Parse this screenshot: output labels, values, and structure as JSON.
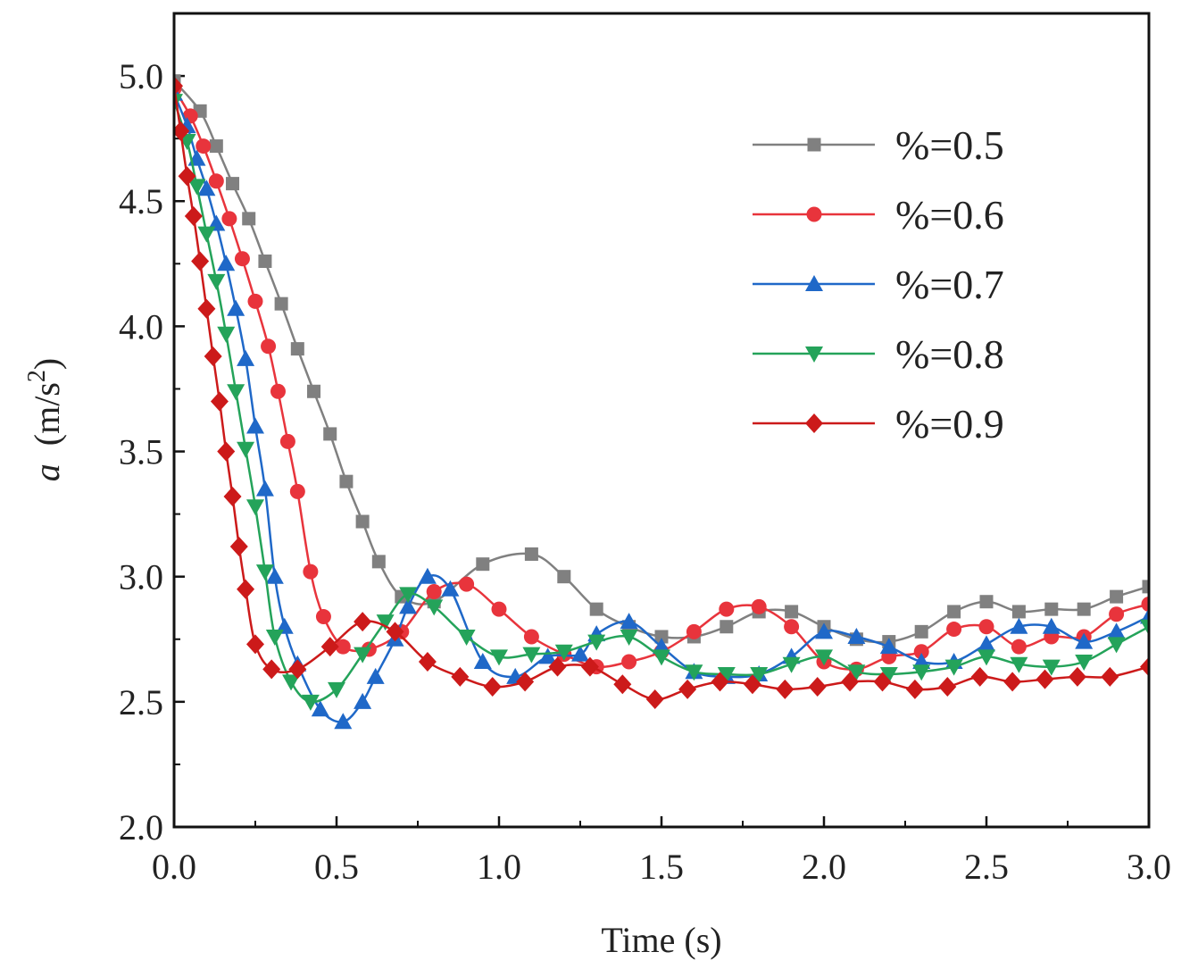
{
  "chart_data": {
    "type": "line",
    "title": "",
    "xlabel": "Time (s)",
    "ylabel_italic": "a",
    "ylabel_unit": "(m/s",
    "ylabel_sup": "2",
    "ylabel_close": ")",
    "xlim": [
      0,
      3
    ],
    "ylim": [
      2,
      5.25
    ],
    "xticks": [
      "0.0",
      "0.5",
      "1.0",
      "1.5",
      "2.0",
      "2.5",
      "3.0"
    ],
    "yticks": [
      "2.0",
      "2.5",
      "3.0",
      "3.5",
      "4.0",
      "4.5",
      "5.0"
    ],
    "grid": false,
    "legend_position": "top-right",
    "series": [
      {
        "name": "%=0.5",
        "color": "#808080",
        "marker": "square",
        "x": [
          0.0,
          0.08,
          0.13,
          0.18,
          0.23,
          0.28,
          0.33,
          0.38,
          0.43,
          0.48,
          0.53,
          0.58,
          0.63,
          0.7,
          0.8,
          0.95,
          1.1,
          1.2,
          1.3,
          1.4,
          1.5,
          1.6,
          1.7,
          1.8,
          1.9,
          2.0,
          2.1,
          2.2,
          2.3,
          2.4,
          2.5,
          2.6,
          2.7,
          2.8,
          2.9,
          3.0
        ],
        "y": [
          4.98,
          4.86,
          4.72,
          4.57,
          4.43,
          4.26,
          4.09,
          3.91,
          3.74,
          3.57,
          3.38,
          3.22,
          3.06,
          2.92,
          2.9,
          3.05,
          3.09,
          3.0,
          2.87,
          2.8,
          2.76,
          2.76,
          2.8,
          2.86,
          2.86,
          2.8,
          2.75,
          2.74,
          2.78,
          2.86,
          2.9,
          2.86,
          2.87,
          2.87,
          2.92,
          2.96
        ]
      },
      {
        "name": "%=0.6",
        "color": "#e8343c",
        "marker": "circle",
        "x": [
          0.0,
          0.05,
          0.09,
          0.13,
          0.17,
          0.21,
          0.25,
          0.29,
          0.32,
          0.35,
          0.38,
          0.42,
          0.46,
          0.52,
          0.6,
          0.7,
          0.8,
          0.9,
          1.0,
          1.1,
          1.2,
          1.3,
          1.4,
          1.5,
          1.6,
          1.7,
          1.8,
          1.9,
          2.0,
          2.1,
          2.2,
          2.3,
          2.4,
          2.5,
          2.6,
          2.7,
          2.8,
          2.9,
          3.0
        ],
        "y": [
          4.95,
          4.84,
          4.72,
          4.58,
          4.43,
          4.27,
          4.1,
          3.92,
          3.74,
          3.54,
          3.34,
          3.02,
          2.84,
          2.72,
          2.71,
          2.78,
          2.94,
          2.97,
          2.87,
          2.76,
          2.69,
          2.64,
          2.66,
          2.7,
          2.78,
          2.87,
          2.88,
          2.8,
          2.66,
          2.63,
          2.68,
          2.7,
          2.79,
          2.8,
          2.72,
          2.76,
          2.76,
          2.85,
          2.89
        ]
      },
      {
        "name": "%=0.7",
        "color": "#1f68c8",
        "marker": "triangle-up",
        "x": [
          0.0,
          0.04,
          0.07,
          0.1,
          0.13,
          0.16,
          0.19,
          0.22,
          0.25,
          0.28,
          0.31,
          0.34,
          0.38,
          0.45,
          0.52,
          0.58,
          0.62,
          0.68,
          0.72,
          0.78,
          0.85,
          0.95,
          1.05,
          1.15,
          1.25,
          1.3,
          1.4,
          1.5,
          1.6,
          1.7,
          1.8,
          1.9,
          2.0,
          2.1,
          2.2,
          2.3,
          2.4,
          2.5,
          2.6,
          2.7,
          2.8,
          2.9,
          3.0
        ],
        "y": [
          4.93,
          4.8,
          4.67,
          4.55,
          4.41,
          4.25,
          4.07,
          3.87,
          3.6,
          3.35,
          3.0,
          2.8,
          2.65,
          2.47,
          2.42,
          2.5,
          2.6,
          2.75,
          2.88,
          3.0,
          2.95,
          2.66,
          2.6,
          2.68,
          2.69,
          2.77,
          2.82,
          2.72,
          2.62,
          2.6,
          2.61,
          2.68,
          2.78,
          2.76,
          2.72,
          2.66,
          2.66,
          2.73,
          2.8,
          2.8,
          2.74,
          2.78,
          2.84
        ]
      },
      {
        "name": "%=0.8",
        "color": "#24a35a",
        "marker": "triangle-down",
        "x": [
          0.0,
          0.04,
          0.07,
          0.1,
          0.13,
          0.16,
          0.19,
          0.22,
          0.25,
          0.28,
          0.31,
          0.36,
          0.42,
          0.5,
          0.58,
          0.65,
          0.72,
          0.8,
          0.9,
          1.0,
          1.1,
          1.2,
          1.3,
          1.4,
          1.5,
          1.6,
          1.7,
          1.8,
          1.9,
          2.0,
          2.1,
          2.2,
          2.3,
          2.4,
          2.5,
          2.6,
          2.7,
          2.8,
          2.9,
          3.0
        ],
        "y": [
          4.9,
          4.74,
          4.56,
          4.37,
          4.18,
          3.97,
          3.74,
          3.51,
          3.28,
          3.02,
          2.76,
          2.58,
          2.5,
          2.55,
          2.69,
          2.82,
          2.93,
          2.88,
          2.76,
          2.68,
          2.69,
          2.7,
          2.74,
          2.76,
          2.68,
          2.62,
          2.61,
          2.61,
          2.65,
          2.68,
          2.62,
          2.61,
          2.62,
          2.64,
          2.68,
          2.65,
          2.64,
          2.66,
          2.73,
          2.8
        ]
      },
      {
        "name": "%=0.9",
        "color": "#cc1a1a",
        "marker": "diamond",
        "x": [
          0.0,
          0.02,
          0.04,
          0.06,
          0.08,
          0.1,
          0.12,
          0.14,
          0.16,
          0.18,
          0.2,
          0.22,
          0.25,
          0.3,
          0.38,
          0.48,
          0.58,
          0.68,
          0.78,
          0.88,
          0.98,
          1.08,
          1.18,
          1.28,
          1.38,
          1.48,
          1.58,
          1.68,
          1.78,
          1.88,
          1.98,
          2.08,
          2.18,
          2.28,
          2.38,
          2.48,
          2.58,
          2.68,
          2.78,
          2.88,
          3.0
        ],
        "y": [
          4.96,
          4.78,
          4.6,
          4.44,
          4.26,
          4.07,
          3.88,
          3.7,
          3.5,
          3.32,
          3.12,
          2.95,
          2.73,
          2.63,
          2.63,
          2.72,
          2.82,
          2.78,
          2.66,
          2.6,
          2.56,
          2.58,
          2.64,
          2.64,
          2.57,
          2.51,
          2.55,
          2.58,
          2.57,
          2.55,
          2.56,
          2.58,
          2.58,
          2.55,
          2.56,
          2.6,
          2.58,
          2.59,
          2.6,
          2.6,
          2.64
        ]
      }
    ]
  }
}
